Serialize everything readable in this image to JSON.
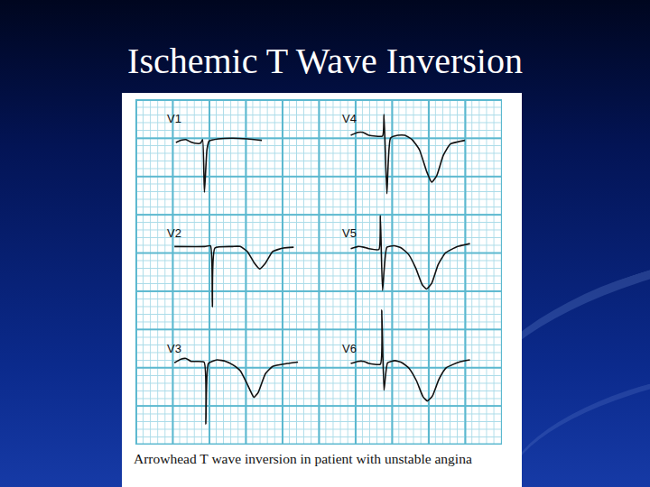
{
  "title": "Ischemic T Wave Inversion",
  "caption": "Arrowhead T wave inversion in patient with unstable angina",
  "chart_data": [
    {
      "type": "line",
      "title": "V1",
      "color": "#111111",
      "xlim": [
        0,
        25.3
      ],
      "ylim": [
        -8,
        11
      ],
      "tick_labels": false,
      "x": [
        5.6,
        6.3,
        7.0,
        7.6,
        8.2,
        9.0,
        9.3,
        9.55,
        9.9,
        10.2,
        11.5,
        13.5,
        15.5,
        17.5
      ],
      "values": [
        2.0,
        2.3,
        2.4,
        2.1,
        1.9,
        1.9,
        2.4,
        -4.9,
        1.0,
        2.2,
        2.5,
        2.6,
        2.5,
        2.3
      ]
    },
    {
      "type": "line",
      "title": "V2",
      "color": "#111111",
      "xlim": [
        0,
        25.3
      ],
      "ylim": [
        -8,
        11
      ],
      "tick_labels": false,
      "x": [
        5.4,
        9.6,
        10.4,
        10.65,
        11.0,
        13.5,
        14.5,
        15.5,
        16.4,
        17.2,
        18.0,
        19.0,
        20.5,
        21.9
      ],
      "values": [
        3.5,
        3.5,
        3.6,
        -4.9,
        3.3,
        3.5,
        3.5,
        2.8,
        1.3,
        0.4,
        1.2,
        2.8,
        3.3,
        3.4
      ]
    },
    {
      "type": "line",
      "title": "V3",
      "color": "#111111",
      "xlim": [
        0,
        25.3
      ],
      "ylim": [
        -8,
        11
      ],
      "tick_labels": false,
      "x": [
        5.4,
        6.3,
        7.0,
        7.7,
        9.5,
        9.75,
        10.1,
        11.3,
        12.5,
        13.5,
        14.5,
        15.4,
        16.1,
        16.4,
        17.0,
        18.0,
        19.0,
        21.0,
        22.5
      ],
      "values": [
        3.3,
        3.8,
        3.9,
        3.5,
        3.4,
        -5.2,
        3.2,
        3.7,
        3.5,
        3.0,
        2.2,
        0.5,
        -1.0,
        -1.5,
        -0.8,
        1.8,
        2.8,
        3.2,
        3.4
      ]
    },
    {
      "type": "line",
      "title": "V4",
      "color": "#111111",
      "xlim": [
        0,
        25.3
      ],
      "ylim": [
        -8,
        11
      ],
      "tick_labels": false,
      "x": [
        4.5,
        5.5,
        6.2,
        7.0,
        8.9,
        9.1,
        9.5,
        10.0,
        11.0,
        12.0,
        13.0,
        14.0,
        15.0,
        15.7,
        16.4,
        17.3,
        18.3,
        20.3
      ],
      "values": [
        3.0,
        3.4,
        3.4,
        3.0,
        2.9,
        5.9,
        -5.1,
        2.6,
        3.0,
        3.0,
        2.4,
        1.0,
        -2.0,
        -3.5,
        -2.6,
        0.2,
        1.8,
        2.3
      ]
    },
    {
      "type": "line",
      "title": "V5",
      "color": "#111111",
      "xlim": [
        0,
        25.3
      ],
      "ylim": [
        -8,
        11
      ],
      "tick_labels": false,
      "x": [
        4.5,
        5.5,
        6.3,
        7.0,
        8.4,
        8.6,
        8.9,
        9.5,
        10.5,
        11.5,
        12.5,
        13.5,
        14.4,
        15.0,
        15.7,
        16.6,
        17.6,
        19.3,
        21.0
      ],
      "values": [
        3.2,
        3.5,
        3.4,
        3.2,
        3.1,
        7.8,
        -2.6,
        3.4,
        3.6,
        3.3,
        2.4,
        0.5,
        -1.8,
        -2.4,
        -1.6,
        1.0,
        2.6,
        3.5,
        3.9
      ]
    },
    {
      "type": "line",
      "title": "V6",
      "color": "#111111",
      "xlim": [
        0,
        25.3
      ],
      "ylim": [
        -8,
        11
      ],
      "tick_labels": false,
      "x": [
        4.5,
        5.5,
        6.3,
        7.0,
        8.6,
        8.8,
        9.1,
        9.6,
        10.6,
        11.6,
        12.6,
        13.6,
        14.5,
        15.1,
        15.8,
        16.7,
        17.7,
        19.5,
        21.0
      ],
      "values": [
        3.2,
        3.5,
        3.5,
        3.2,
        3.1,
        10.6,
        -0.5,
        3.3,
        3.6,
        3.3,
        2.5,
        0.8,
        -1.4,
        -2.0,
        -1.3,
        1.0,
        2.6,
        3.4,
        3.7
      ]
    }
  ]
}
